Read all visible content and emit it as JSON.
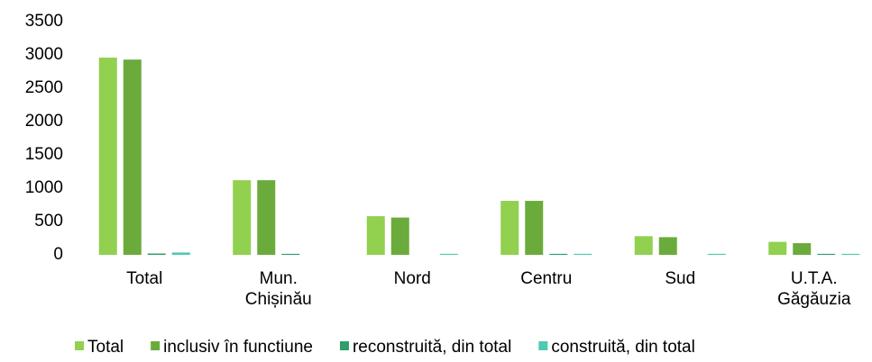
{
  "chart_data": {
    "type": "bar",
    "categories": [
      "Total",
      "Mun.\nChișinău",
      "Nord",
      "Centru",
      "Sud",
      "U.T.A.\nGăgăuzia"
    ],
    "series": [
      {
        "name": "Total",
        "color": "#92d050",
        "values": [
          2960,
          1120,
          580,
          810,
          280,
          195
        ]
      },
      {
        "name": "inclusiv în functiune",
        "color": "#6aab3c",
        "values": [
          2930,
          1120,
          560,
          810,
          265,
          175
        ]
      },
      {
        "name": "reconstruită, din total",
        "color": "#2e9e6a",
        "values": [
          20,
          15,
          0,
          15,
          0,
          15
        ]
      },
      {
        "name": "construită, din total",
        "color": "#4fc9b0",
        "values": [
          35,
          0,
          15,
          15,
          15,
          15
        ]
      }
    ],
    "ylim": [
      0,
      3500
    ],
    "yticks": [
      0,
      500,
      1000,
      1500,
      2000,
      2500,
      3000,
      3500
    ],
    "grid": false,
    "legend": "bottom"
  }
}
